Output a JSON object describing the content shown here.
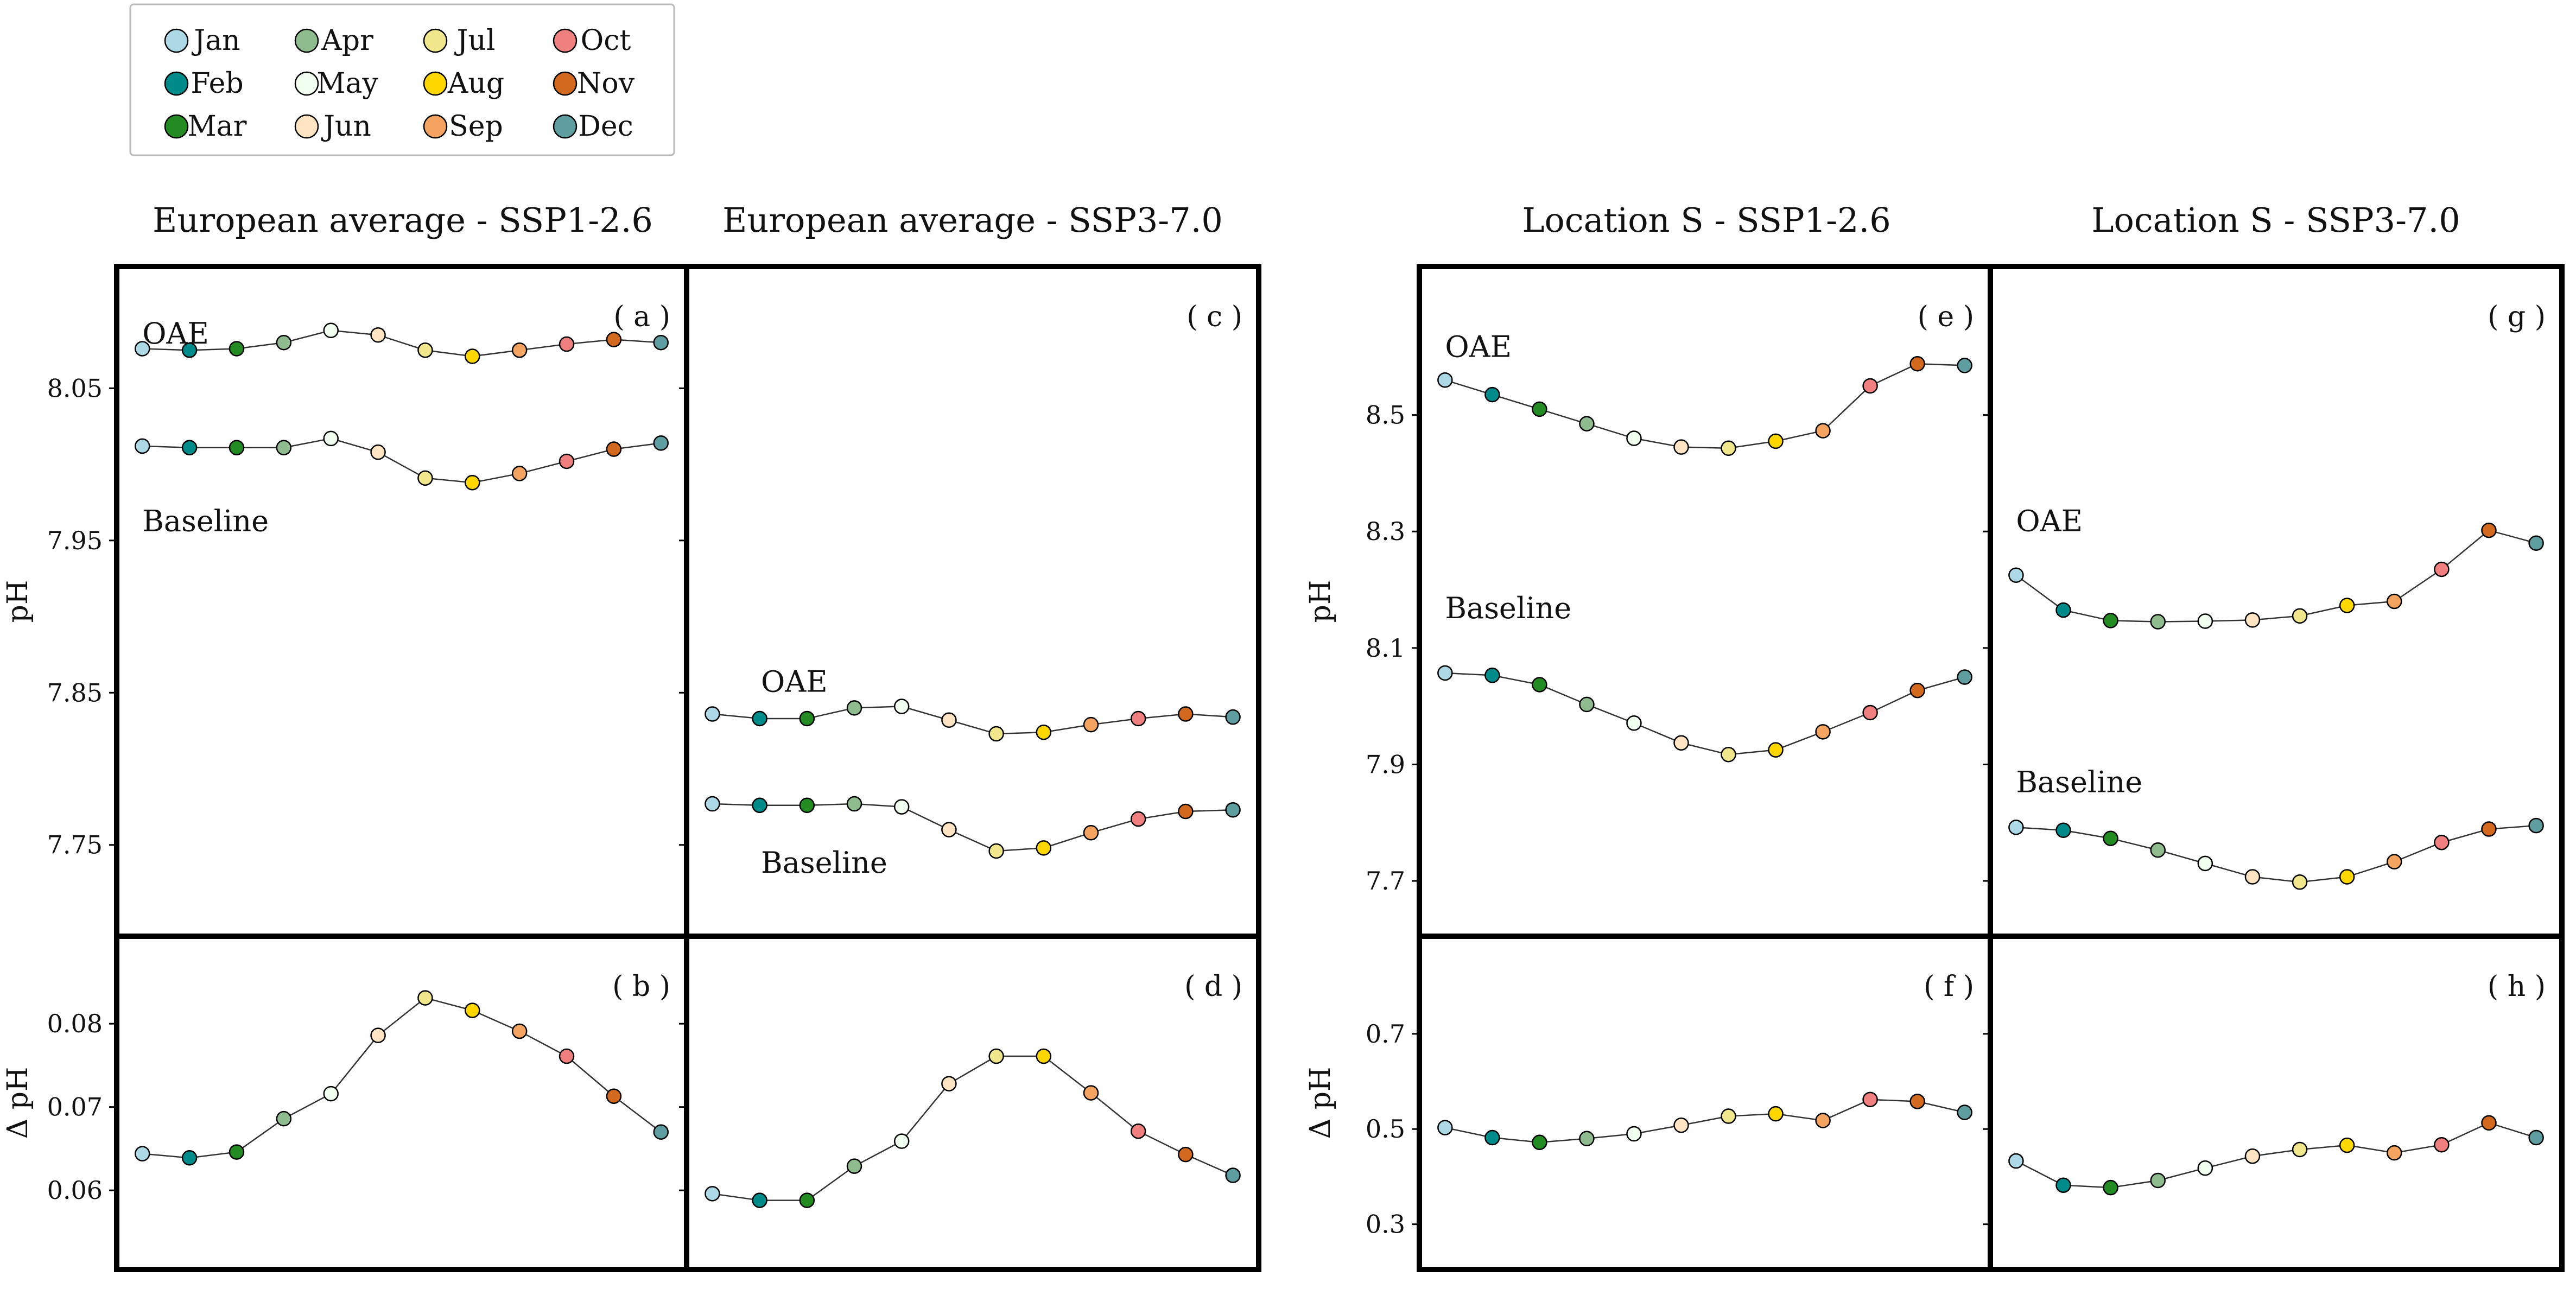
{
  "months": [
    "Jan",
    "Feb",
    "Mar",
    "Apr",
    "May",
    "Jun",
    "Jul",
    "Aug",
    "Sep",
    "Oct",
    "Nov",
    "Dec"
  ],
  "colors": [
    "#add8e6",
    "#008b8b",
    "#228b22",
    "#8fbc8f",
    "#f0fff0",
    "#ffe4c4",
    "#f0e68c",
    "#ffd700",
    "#f4a460",
    "#f08080",
    "#d2691e",
    "#5f9ea0"
  ],
  "legend": {
    "labels": [
      "Jan",
      "Feb",
      "Mar",
      "Apr",
      "May",
      "Jun",
      "Jul",
      "Aug",
      "Sep",
      "Oct",
      "Nov",
      "Dec"
    ]
  },
  "column_titles": [
    "European average - SSP1-2.6",
    "European average - SSP3-7.0",
    "Location S - SSP1-2.6",
    "Location S - SSP3-7.0"
  ],
  "chart_data": [
    {
      "type": "line",
      "panel_label": "( a )",
      "ylabel": "pH",
      "ylim": [
        7.69,
        8.13
      ],
      "yticks": [
        "7.75",
        "7.85",
        "7.95",
        "8.05"
      ],
      "categories": [
        "Jan",
        "Feb",
        "Mar",
        "Apr",
        "May",
        "Jun",
        "Jul",
        "Aug",
        "Sep",
        "Oct",
        "Nov",
        "Dec"
      ],
      "series": [
        {
          "name": "OAE",
          "values": [
            8.076,
            8.075,
            8.076,
            8.08,
            8.088,
            8.085,
            8.075,
            8.071,
            8.075,
            8.079,
            8.082,
            8.08
          ]
        },
        {
          "name": "Baseline",
          "values": [
            8.012,
            8.011,
            8.011,
            8.011,
            8.017,
            8.008,
            7.991,
            7.988,
            7.994,
            8.002,
            8.01,
            8.014
          ]
        }
      ]
    },
    {
      "type": "line",
      "panel_label": "( b )",
      "ylabel": "Δ pH",
      "ylim": [
        0.0505,
        0.0905
      ],
      "yticks": [
        "0.06",
        "0.07",
        "0.08"
      ],
      "categories": [
        "Jan",
        "Feb",
        "Mar",
        "Apr",
        "May",
        "Jun",
        "Jul",
        "Aug",
        "Sep",
        "Oct",
        "Nov",
        "Dec"
      ],
      "series": [
        {
          "name": "",
          "values": [
            0.0644,
            0.0639,
            0.0646,
            0.0686,
            0.0716,
            0.0786,
            0.0831,
            0.0816,
            0.0791,
            0.0761,
            0.0713,
            0.067
          ]
        }
      ]
    },
    {
      "type": "line",
      "panel_label": "( c )",
      "ylabel": "",
      "ylim": [
        7.69,
        8.13
      ],
      "yticks": [
        "7.75",
        "7.85",
        "7.95",
        "8.05"
      ],
      "categories": [
        "Jan",
        "Feb",
        "Mar",
        "Apr",
        "May",
        "Jun",
        "Jul",
        "Aug",
        "Sep",
        "Oct",
        "Nov",
        "Dec"
      ],
      "series": [
        {
          "name": "OAE",
          "values": [
            7.836,
            7.833,
            7.833,
            7.84,
            7.841,
            7.832,
            7.823,
            7.824,
            7.829,
            7.833,
            7.836,
            7.834
          ]
        },
        {
          "name": "Baseline",
          "values": [
            7.777,
            7.776,
            7.776,
            7.777,
            7.775,
            7.76,
            7.746,
            7.748,
            7.758,
            7.767,
            7.772,
            7.773
          ]
        }
      ]
    },
    {
      "type": "line",
      "panel_label": "( d )",
      "ylabel": "",
      "ylim": [
        0.0505,
        0.0905
      ],
      "yticks": [
        "0.06",
        "0.07",
        "0.08"
      ],
      "categories": [
        "Jan",
        "Feb",
        "Mar",
        "Apr",
        "May",
        "Jun",
        "Jul",
        "Aug",
        "Sep",
        "Oct",
        "Nov",
        "Dec"
      ],
      "series": [
        {
          "name": "",
          "values": [
            0.0596,
            0.0588,
            0.0588,
            0.0629,
            0.0659,
            0.0728,
            0.0761,
            0.0761,
            0.0717,
            0.0671,
            0.0643,
            0.0618
          ]
        }
      ]
    },
    {
      "type": "line",
      "panel_label": "( e )",
      "ylabel": "pH",
      "ylim": [
        7.605,
        8.755
      ],
      "yticks": [
        "7.7",
        "7.9",
        "8.1",
        "8.3",
        "8.5"
      ],
      "categories": [
        "Jan",
        "Feb",
        "Mar",
        "Apr",
        "May",
        "Jun",
        "Jul",
        "Aug",
        "Sep",
        "Oct",
        "Nov",
        "Dec"
      ],
      "series": [
        {
          "name": "OAE",
          "values": [
            8.56,
            8.535,
            8.51,
            8.485,
            8.46,
            8.445,
            8.443,
            8.455,
            8.473,
            8.55,
            8.588,
            8.585
          ]
        },
        {
          "name": "Baseline",
          "values": [
            8.057,
            8.053,
            8.037,
            8.003,
            7.971,
            7.937,
            7.917,
            7.925,
            7.956,
            7.989,
            8.027,
            8.05
          ]
        }
      ]
    },
    {
      "type": "line",
      "panel_label": "( f )",
      "ylabel": "Δ pH",
      "ylim": [
        0.205,
        0.905
      ],
      "yticks": [
        "0.3",
        "0.5",
        "0.7"
      ],
      "categories": [
        "Jan",
        "Feb",
        "Mar",
        "Apr",
        "May",
        "Jun",
        "Jul",
        "Aug",
        "Sep",
        "Oct",
        "Nov",
        "Dec"
      ],
      "series": [
        {
          "name": "",
          "values": [
            0.503,
            0.482,
            0.472,
            0.48,
            0.49,
            0.508,
            0.527,
            0.532,
            0.518,
            0.562,
            0.558,
            0.535
          ]
        }
      ]
    },
    {
      "type": "line",
      "panel_label": "( g )",
      "ylabel": "",
      "ylim": [
        7.605,
        8.755
      ],
      "yticks": [
        "7.7",
        "7.9",
        "8.1",
        "8.3",
        "8.5"
      ],
      "categories": [
        "Jan",
        "Feb",
        "Mar",
        "Apr",
        "May",
        "Jun",
        "Jul",
        "Aug",
        "Sep",
        "Oct",
        "Nov",
        "Dec"
      ],
      "series": [
        {
          "name": "OAE",
          "values": [
            8.225,
            8.165,
            8.147,
            8.145,
            8.146,
            8.148,
            8.155,
            8.173,
            8.18,
            8.235,
            8.302,
            8.28
          ]
        },
        {
          "name": "Baseline",
          "values": [
            7.792,
            7.787,
            7.773,
            7.753,
            7.73,
            7.707,
            7.698,
            7.707,
            7.733,
            7.766,
            7.789,
            7.795
          ]
        }
      ]
    },
    {
      "type": "line",
      "panel_label": "( h )",
      "ylabel": "",
      "ylim": [
        0.205,
        0.905
      ],
      "yticks": [
        "0.3",
        "0.5",
        "0.7"
      ],
      "categories": [
        "Jan",
        "Feb",
        "Mar",
        "Apr",
        "May",
        "Jun",
        "Jul",
        "Aug",
        "Sep",
        "Oct",
        "Nov",
        "Dec"
      ],
      "series": [
        {
          "name": "",
          "values": [
            0.433,
            0.382,
            0.377,
            0.392,
            0.418,
            0.443,
            0.457,
            0.466,
            0.45,
            0.467,
            0.513,
            0.482
          ]
        }
      ]
    }
  ]
}
